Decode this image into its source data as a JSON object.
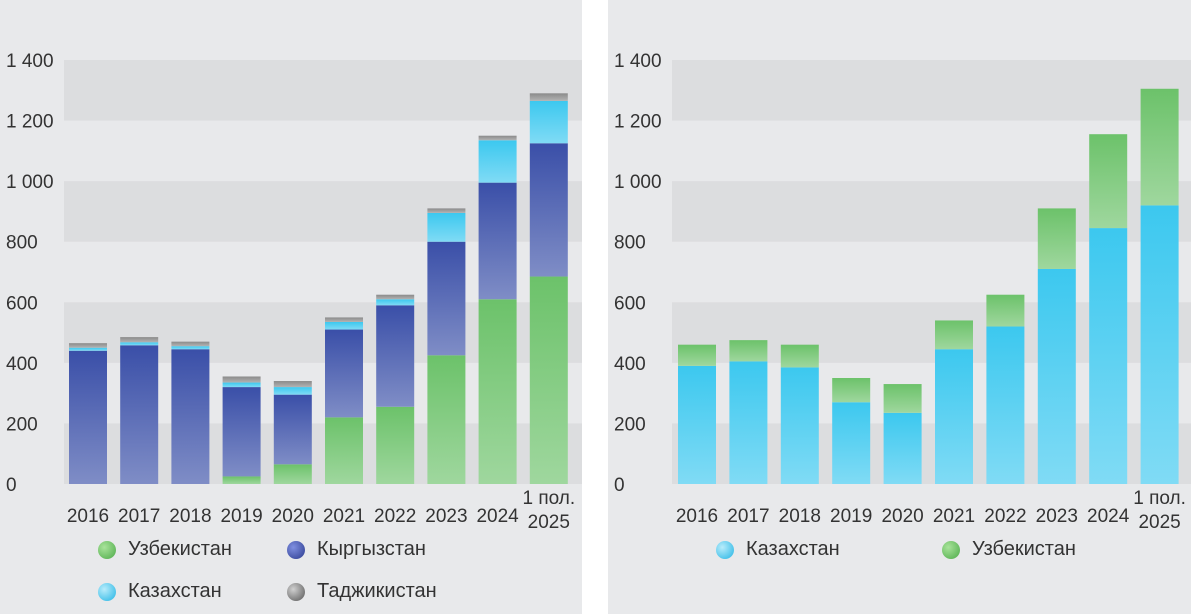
{
  "chart_data": [
    {
      "type": "bar",
      "stacked": true,
      "categories": [
        "2016",
        "2017",
        "2018",
        "2019",
        "2020",
        "2021",
        "2022",
        "2023",
        "2024",
        "1 пол. 2025"
      ],
      "ylim": [
        0,
        1400
      ],
      "yticks": [
        "0",
        "200",
        "400",
        "600",
        "800",
        "1 000",
        "1 200",
        "1 400"
      ],
      "ytick_values": [
        0,
        200,
        400,
        600,
        800,
        1000,
        1200,
        1400
      ],
      "series": [
        {
          "name": "Узбекистан",
          "color": "#6cc26a",
          "values": [
            0,
            0,
            0,
            25,
            65,
            220,
            255,
            425,
            610,
            685
          ]
        },
        {
          "name": "Кыргызстан",
          "color": "#3a4fa8",
          "values": [
            440,
            458,
            445,
            295,
            230,
            290,
            335,
            375,
            385,
            440
          ]
        },
        {
          "name": "Казахстан",
          "color": "#3cc8ef",
          "values": [
            10,
            10,
            10,
            15,
            25,
            25,
            20,
            95,
            140,
            140
          ]
        },
        {
          "name": "Таджикистан",
          "color": "#8a8a8a",
          "values": [
            15,
            17,
            15,
            20,
            20,
            15,
            15,
            15,
            15,
            25
          ]
        }
      ]
    },
    {
      "type": "bar",
      "stacked": true,
      "categories": [
        "2016",
        "2017",
        "2018",
        "2019",
        "2020",
        "2021",
        "2022",
        "2023",
        "2024",
        "1 пол. 2025"
      ],
      "ylim": [
        0,
        1400
      ],
      "yticks": [
        "0",
        "200",
        "400",
        "600",
        "800",
        "1 000",
        "1 200",
        "1 400"
      ],
      "ytick_values": [
        0,
        200,
        400,
        600,
        800,
        1000,
        1200,
        1400
      ],
      "series": [
        {
          "name": "Казахстан",
          "color": "#3cc8ef",
          "values": [
            390,
            405,
            385,
            270,
            235,
            445,
            520,
            710,
            845,
            920
          ]
        },
        {
          "name": "Узбекистан",
          "color": "#6cc26a",
          "values": [
            70,
            70,
            75,
            80,
            95,
            95,
            105,
            200,
            310,
            385
          ]
        }
      ]
    }
  ]
}
